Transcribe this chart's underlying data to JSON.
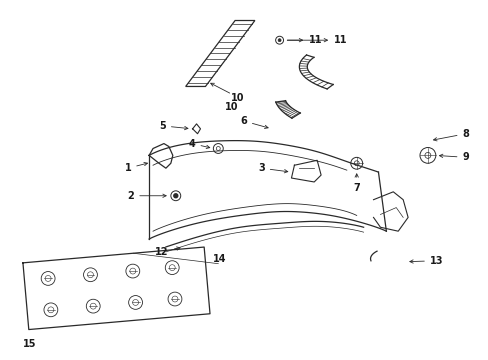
{
  "background_color": "#ffffff",
  "line_color": "#2a2a2a",
  "label_color": "#1a1a1a",
  "fig_width": 4.89,
  "fig_height": 3.6,
  "dpi": 100
}
